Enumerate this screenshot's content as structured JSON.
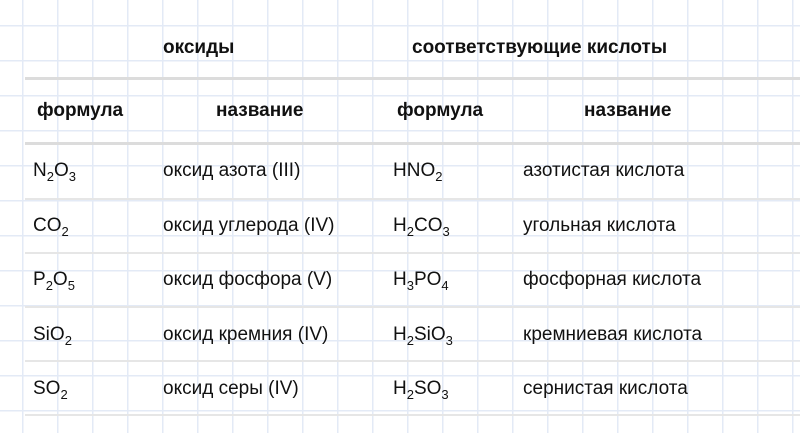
{
  "group_headers": {
    "oxides": "оксиды",
    "acids": "соответствующие кислоты"
  },
  "column_headers": [
    "формула",
    "название",
    "формула",
    "название"
  ],
  "rows": [
    {
      "oxide_formula": [
        [
          "N",
          "2"
        ],
        [
          "O",
          "3"
        ]
      ],
      "oxide_name": "оксид азота (III)",
      "acid_formula": [
        [
          "HNO",
          "2"
        ]
      ],
      "acid_name": "азотистая кислота"
    },
    {
      "oxide_formula": [
        [
          "CO",
          "2"
        ]
      ],
      "oxide_name": "оксид углерода (IV)",
      "acid_formula": [
        [
          "H",
          "2"
        ],
        [
          "CO",
          "3"
        ]
      ],
      "acid_name": "угольная кислота"
    },
    {
      "oxide_formula": [
        [
          "P",
          "2"
        ],
        [
          "O",
          "5"
        ]
      ],
      "oxide_name": "оксид фосфора (V)",
      "acid_formula": [
        [
          "H",
          "3"
        ],
        [
          "PO",
          "4"
        ]
      ],
      "acid_name": "фосфорная кислота"
    },
    {
      "oxide_formula": [
        [
          "SiO",
          "2"
        ]
      ],
      "oxide_name": "оксид кремния (IV)",
      "acid_formula": [
        [
          "H",
          "2"
        ],
        [
          "SiO",
          "3"
        ]
      ],
      "acid_name": "кремниевая кислота"
    },
    {
      "oxide_formula": [
        [
          "SO",
          "2"
        ]
      ],
      "oxide_name": "оксид серы (IV)",
      "acid_formula": [
        [
          "H",
          "2"
        ],
        [
          "SO",
          "3"
        ]
      ],
      "acid_name": "сернистая кислота"
    }
  ]
}
